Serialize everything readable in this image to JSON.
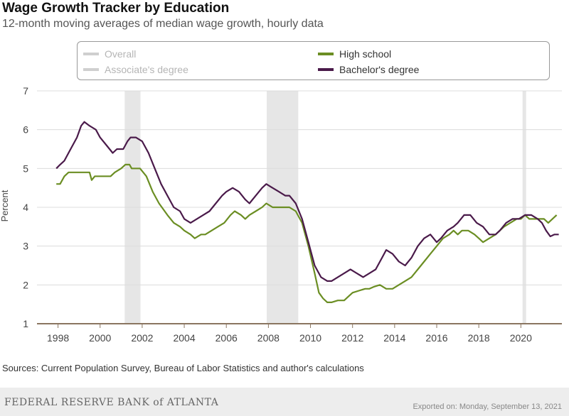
{
  "header": {
    "title": "Wage Growth Tracker by Education",
    "subtitle": "12-month moving averages of median wage growth, hourly data"
  },
  "legend": [
    {
      "label": "Overall",
      "color": "#c8c8c8",
      "active": false
    },
    {
      "label": "Associate's degree",
      "color": "#c8c8c8",
      "active": false
    },
    {
      "label": "High school",
      "color": "#6b8e23",
      "active": true
    },
    {
      "label": "Bachelor's degree",
      "color": "#4a1a4a",
      "active": true
    }
  ],
  "footer": {
    "source": "Sources: Current Population Survey, Bureau of Labor Statistics and author's calculations",
    "logo": "FEDERAL RESERVE BANK of ATLANTA",
    "export": "Exported on: Monday, September 13, 2021"
  },
  "chart_data": {
    "type": "line",
    "title": "Wage Growth Tracker by Education",
    "ylabel": "Percent",
    "xlabel": "",
    "xlim": [
      1997,
      2021.95
    ],
    "ylim": [
      1,
      7
    ],
    "yticks": [
      1,
      2,
      3,
      4,
      5,
      6,
      7
    ],
    "xticks": [
      1998,
      2000,
      2002,
      2004,
      2006,
      2008,
      2010,
      2012,
      2014,
      2016,
      2018,
      2020
    ],
    "recessions": [
      [
        2001.17,
        2001.92
      ],
      [
        2007.92,
        2009.42
      ],
      [
        2020.08,
        2020.25
      ]
    ],
    "series": [
      {
        "name": "High school",
        "color": "#6b8e23",
        "points": [
          [
            1997.92,
            4.6
          ],
          [
            1998.1,
            4.6
          ],
          [
            1998.3,
            4.8
          ],
          [
            1998.5,
            4.9
          ],
          [
            1999.0,
            4.9
          ],
          [
            1999.5,
            4.9
          ],
          [
            1999.6,
            4.7
          ],
          [
            1999.75,
            4.8
          ],
          [
            2000.0,
            4.8
          ],
          [
            2000.5,
            4.8
          ],
          [
            2000.7,
            4.9
          ],
          [
            2001.0,
            5.0
          ],
          [
            2001.2,
            5.1
          ],
          [
            2001.4,
            5.1
          ],
          [
            2001.5,
            5.0
          ],
          [
            2001.9,
            5.0
          ],
          [
            2002.2,
            4.8
          ],
          [
            2002.5,
            4.4
          ],
          [
            2002.8,
            4.1
          ],
          [
            2003.2,
            3.8
          ],
          [
            2003.5,
            3.6
          ],
          [
            2003.8,
            3.5
          ],
          [
            2004.0,
            3.4
          ],
          [
            2004.3,
            3.3
          ],
          [
            2004.5,
            3.2
          ],
          [
            2004.8,
            3.3
          ],
          [
            2005.0,
            3.3
          ],
          [
            2005.3,
            3.4
          ],
          [
            2005.6,
            3.5
          ],
          [
            2005.9,
            3.6
          ],
          [
            2006.2,
            3.8
          ],
          [
            2006.4,
            3.9
          ],
          [
            2006.7,
            3.8
          ],
          [
            2006.9,
            3.7
          ],
          [
            2007.1,
            3.8
          ],
          [
            2007.4,
            3.9
          ],
          [
            2007.7,
            4.0
          ],
          [
            2007.9,
            4.1
          ],
          [
            2008.2,
            4.0
          ],
          [
            2008.6,
            4.0
          ],
          [
            2009.0,
            4.0
          ],
          [
            2009.3,
            3.9
          ],
          [
            2009.6,
            3.6
          ],
          [
            2009.9,
            3.0
          ],
          [
            2010.2,
            2.3
          ],
          [
            2010.4,
            1.8
          ],
          [
            2010.6,
            1.65
          ],
          [
            2010.8,
            1.55
          ],
          [
            2011.0,
            1.55
          ],
          [
            2011.3,
            1.6
          ],
          [
            2011.6,
            1.6
          ],
          [
            2011.8,
            1.7
          ],
          [
            2012.0,
            1.8
          ],
          [
            2012.3,
            1.85
          ],
          [
            2012.6,
            1.9
          ],
          [
            2012.8,
            1.9
          ],
          [
            2013.0,
            1.95
          ],
          [
            2013.3,
            2.0
          ],
          [
            2013.6,
            1.9
          ],
          [
            2013.9,
            1.9
          ],
          [
            2014.2,
            2.0
          ],
          [
            2014.5,
            2.1
          ],
          [
            2014.8,
            2.2
          ],
          [
            2015.1,
            2.4
          ],
          [
            2015.4,
            2.6
          ],
          [
            2015.7,
            2.8
          ],
          [
            2016.0,
            3.0
          ],
          [
            2016.3,
            3.2
          ],
          [
            2016.6,
            3.3
          ],
          [
            2016.8,
            3.4
          ],
          [
            2017.0,
            3.3
          ],
          [
            2017.2,
            3.4
          ],
          [
            2017.5,
            3.4
          ],
          [
            2017.8,
            3.3
          ],
          [
            2018.0,
            3.2
          ],
          [
            2018.2,
            3.1
          ],
          [
            2018.5,
            3.2
          ],
          [
            2018.8,
            3.3
          ],
          [
            2019.0,
            3.4
          ],
          [
            2019.2,
            3.5
          ],
          [
            2019.5,
            3.6
          ],
          [
            2019.8,
            3.7
          ],
          [
            2020.0,
            3.7
          ],
          [
            2020.2,
            3.8
          ],
          [
            2020.4,
            3.7
          ],
          [
            2020.6,
            3.7
          ],
          [
            2020.9,
            3.7
          ],
          [
            2021.1,
            3.7
          ],
          [
            2021.3,
            3.6
          ],
          [
            2021.5,
            3.7
          ],
          [
            2021.7,
            3.8
          ]
        ]
      },
      {
        "name": "Bachelor's degree",
        "color": "#4a1a4a",
        "points": [
          [
            1997.92,
            5.0
          ],
          [
            1998.1,
            5.1
          ],
          [
            1998.3,
            5.2
          ],
          [
            1998.6,
            5.5
          ],
          [
            1998.9,
            5.8
          ],
          [
            1999.1,
            6.1
          ],
          [
            1999.25,
            6.2
          ],
          [
            1999.5,
            6.1
          ],
          [
            1999.8,
            6.0
          ],
          [
            2000.0,
            5.8
          ],
          [
            2000.3,
            5.6
          ],
          [
            2000.6,
            5.4
          ],
          [
            2000.8,
            5.5
          ],
          [
            2001.1,
            5.5
          ],
          [
            2001.3,
            5.7
          ],
          [
            2001.45,
            5.8
          ],
          [
            2001.7,
            5.8
          ],
          [
            2002.0,
            5.7
          ],
          [
            2002.3,
            5.4
          ],
          [
            2002.6,
            5.0
          ],
          [
            2002.9,
            4.6
          ],
          [
            2003.2,
            4.3
          ],
          [
            2003.5,
            4.0
          ],
          [
            2003.8,
            3.9
          ],
          [
            2004.0,
            3.7
          ],
          [
            2004.3,
            3.6
          ],
          [
            2004.6,
            3.7
          ],
          [
            2004.9,
            3.8
          ],
          [
            2005.2,
            3.9
          ],
          [
            2005.5,
            4.1
          ],
          [
            2005.8,
            4.3
          ],
          [
            2006.0,
            4.4
          ],
          [
            2006.3,
            4.5
          ],
          [
            2006.6,
            4.4
          ],
          [
            2006.9,
            4.2
          ],
          [
            2007.1,
            4.1
          ],
          [
            2007.4,
            4.3
          ],
          [
            2007.7,
            4.5
          ],
          [
            2007.9,
            4.6
          ],
          [
            2008.2,
            4.5
          ],
          [
            2008.5,
            4.4
          ],
          [
            2008.8,
            4.3
          ],
          [
            2009.0,
            4.3
          ],
          [
            2009.3,
            4.1
          ],
          [
            2009.6,
            3.7
          ],
          [
            2009.9,
            3.1
          ],
          [
            2010.2,
            2.5
          ],
          [
            2010.5,
            2.2
          ],
          [
            2010.8,
            2.1
          ],
          [
            2011.0,
            2.1
          ],
          [
            2011.3,
            2.2
          ],
          [
            2011.6,
            2.3
          ],
          [
            2011.9,
            2.4
          ],
          [
            2012.2,
            2.3
          ],
          [
            2012.5,
            2.2
          ],
          [
            2012.8,
            2.3
          ],
          [
            2013.1,
            2.4
          ],
          [
            2013.4,
            2.7
          ],
          [
            2013.6,
            2.9
          ],
          [
            2013.9,
            2.8
          ],
          [
            2014.2,
            2.6
          ],
          [
            2014.5,
            2.5
          ],
          [
            2014.8,
            2.7
          ],
          [
            2015.1,
            3.0
          ],
          [
            2015.4,
            3.2
          ],
          [
            2015.7,
            3.3
          ],
          [
            2016.0,
            3.1
          ],
          [
            2016.2,
            3.2
          ],
          [
            2016.5,
            3.4
          ],
          [
            2016.8,
            3.5
          ],
          [
            2017.0,
            3.6
          ],
          [
            2017.3,
            3.8
          ],
          [
            2017.6,
            3.8
          ],
          [
            2017.9,
            3.6
          ],
          [
            2018.2,
            3.5
          ],
          [
            2018.5,
            3.3
          ],
          [
            2018.8,
            3.3
          ],
          [
            2019.0,
            3.4
          ],
          [
            2019.3,
            3.6
          ],
          [
            2019.6,
            3.7
          ],
          [
            2019.9,
            3.7
          ],
          [
            2020.2,
            3.8
          ],
          [
            2020.5,
            3.8
          ],
          [
            2020.8,
            3.7
          ],
          [
            2021.0,
            3.6
          ],
          [
            2021.2,
            3.4
          ],
          [
            2021.4,
            3.25
          ],
          [
            2021.6,
            3.3
          ],
          [
            2021.8,
            3.3
          ]
        ]
      }
    ]
  }
}
